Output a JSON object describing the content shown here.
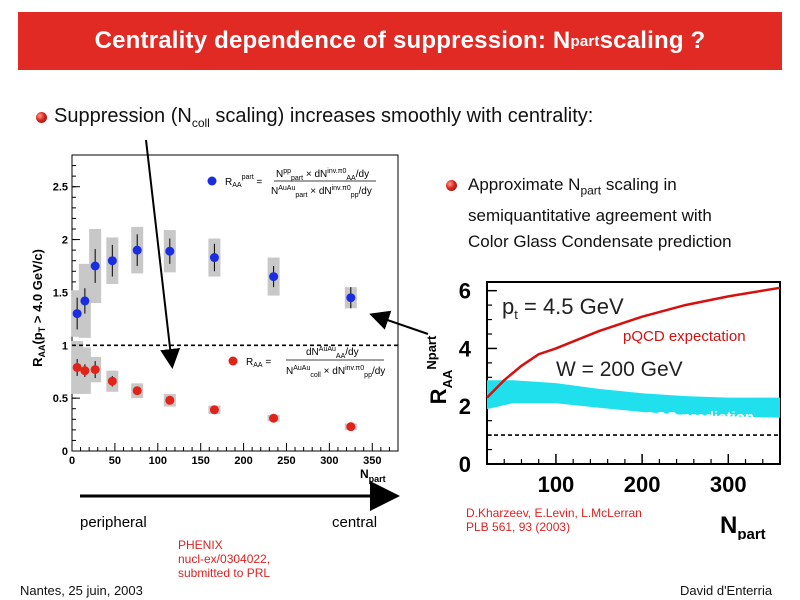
{
  "slide": {
    "title_main": "Centrality dependence of suppression: N",
    "title_sub": "part",
    "title_tail": " scaling ?"
  },
  "bullet1": {
    "pre": "Suppression (N",
    "sub": "coll",
    "post": " scaling) increases smoothly with centrality:"
  },
  "bullet2": {
    "line1_pre": "Approximate N",
    "line1_sub": "part",
    "line1_post": " scaling in",
    "line2": "semiquantitative agreement with",
    "line3": "Color Glass Condensate prediction"
  },
  "left_chart": {
    "ylabel": "R_AA(p_T > 4.0 GeV/c)",
    "xlabel": "N_part",
    "xticks": [
      "0",
      "50",
      "100",
      "150",
      "200",
      "250",
      "300",
      "350"
    ],
    "yticks": [
      "0",
      "0.5",
      "1",
      "1.5",
      "2",
      "2.5"
    ],
    "formula_blue": "R_AA^part = N_part^pp × dN_AA^inv.π0/dy / (N_part^AuAu × dN_pp^inv.π0/dy)",
    "formula_red": "R_AA = dN_AA^AuAu/dy / (N_coll^AuAu × dN_pp^inv.π0/dy)"
  },
  "right_chart": {
    "ylabel": "R_AA^Npart",
    "xlabel": "N_part",
    "xticks": [
      "100",
      "200",
      "300"
    ],
    "yticks": [
      "0",
      "2",
      "4",
      "6"
    ],
    "pt_label": "p",
    "pt_sub": "t",
    "pt_value": " = 4.5 GeV",
    "w_label": "W = 200 GeV",
    "pqcd_label": "pQCD expectation",
    "cgc_label": "CGC prediction"
  },
  "axis_words": {
    "left": "peripheral",
    "right": "central"
  },
  "refs": {
    "phenix": [
      "PHENIX",
      "nucl-ex/0304022,",
      "submitted to PRL"
    ],
    "theory": [
      "D.Kharzeev, E.Levin, L.McLerran",
      "PLB 561, 93 (2003)"
    ]
  },
  "footer": {
    "left": "Nantes, 25 juin, 2003",
    "right": "David d'Enterria"
  },
  "colors": {
    "title_bg": "#e22a25",
    "blue": "#1a2de0",
    "red": "#e2231a",
    "cyan": "#20e0ee",
    "pqcd": "#d6100f"
  },
  "chart_data": [
    {
      "type": "scatter",
      "xlabel": "N_part",
      "ylabel": "R_AA(p_T > 4.0 GeV/c)",
      "xlim": [
        0,
        380
      ],
      "ylim": [
        0,
        2.8
      ],
      "reference_line_y": 1,
      "series": [
        {
          "name": "R_AA^part",
          "color": "#1a2de0",
          "points": [
            {
              "x": 6,
              "y": 1.3,
              "err": 0.15,
              "sys": 0.22
            },
            {
              "x": 15,
              "y": 1.42,
              "err": 0.12,
              "sys": 0.35
            },
            {
              "x": 27,
              "y": 1.75,
              "err": 0.16,
              "sys": 0.35
            },
            {
              "x": 47,
              "y": 1.8,
              "err": 0.15,
              "sys": 0.22
            },
            {
              "x": 76,
              "y": 1.9,
              "err": 0.15,
              "sys": 0.22
            },
            {
              "x": 114,
              "y": 1.89,
              "err": 0.12,
              "sys": 0.2
            },
            {
              "x": 166,
              "y": 1.83,
              "err": 0.13,
              "sys": 0.18
            },
            {
              "x": 235,
              "y": 1.65,
              "err": 0.1,
              "sys": 0.18
            },
            {
              "x": 325,
              "y": 1.45,
              "err": 0.1,
              "sys": 0.1
            }
          ]
        },
        {
          "name": "R_AA",
          "color": "#e2231a",
          "points": [
            {
              "x": 6,
              "y": 0.79,
              "err": 0.08,
              "sys": 0.25
            },
            {
              "x": 15,
              "y": 0.76,
              "err": 0.06,
              "sys": 0.22
            },
            {
              "x": 27,
              "y": 0.77,
              "err": 0.08,
              "sys": 0.12
            },
            {
              "x": 47,
              "y": 0.66,
              "err": 0.05,
              "sys": 0.1
            },
            {
              "x": 76,
              "y": 0.57,
              "err": 0.04,
              "sys": 0.07
            },
            {
              "x": 114,
              "y": 0.48,
              "err": 0.03,
              "sys": 0.06
            },
            {
              "x": 166,
              "y": 0.39,
              "err": 0.03,
              "sys": 0.04
            },
            {
              "x": 235,
              "y": 0.31,
              "err": 0.02,
              "sys": 0.03
            },
            {
              "x": 325,
              "y": 0.23,
              "err": 0.02,
              "sys": 0.03
            }
          ]
        }
      ]
    },
    {
      "type": "line",
      "xlabel": "N_part",
      "ylabel": "R_AA^Npart",
      "xlim": [
        20,
        360
      ],
      "ylim": [
        0,
        6.3
      ],
      "reference_line_y": 1,
      "series": [
        {
          "name": "pQCD expectation",
          "color": "#d6100f",
          "x": [
            20,
            40,
            60,
            80,
            100,
            150,
            200,
            250,
            300,
            360
          ],
          "y": [
            2.3,
            2.9,
            3.4,
            3.8,
            4.0,
            4.6,
            5.1,
            5.5,
            5.8,
            6.1
          ]
        },
        {
          "name": "CGC prediction",
          "color": "#20e0ee",
          "x": [
            20,
            50,
            100,
            150,
            200,
            250,
            300,
            360
          ],
          "y_low": [
            1.9,
            2.1,
            2.1,
            1.95,
            1.8,
            1.7,
            1.65,
            1.6
          ],
          "y_high": [
            2.9,
            2.9,
            2.8,
            2.6,
            2.45,
            2.35,
            2.3,
            2.3
          ]
        }
      ]
    }
  ]
}
